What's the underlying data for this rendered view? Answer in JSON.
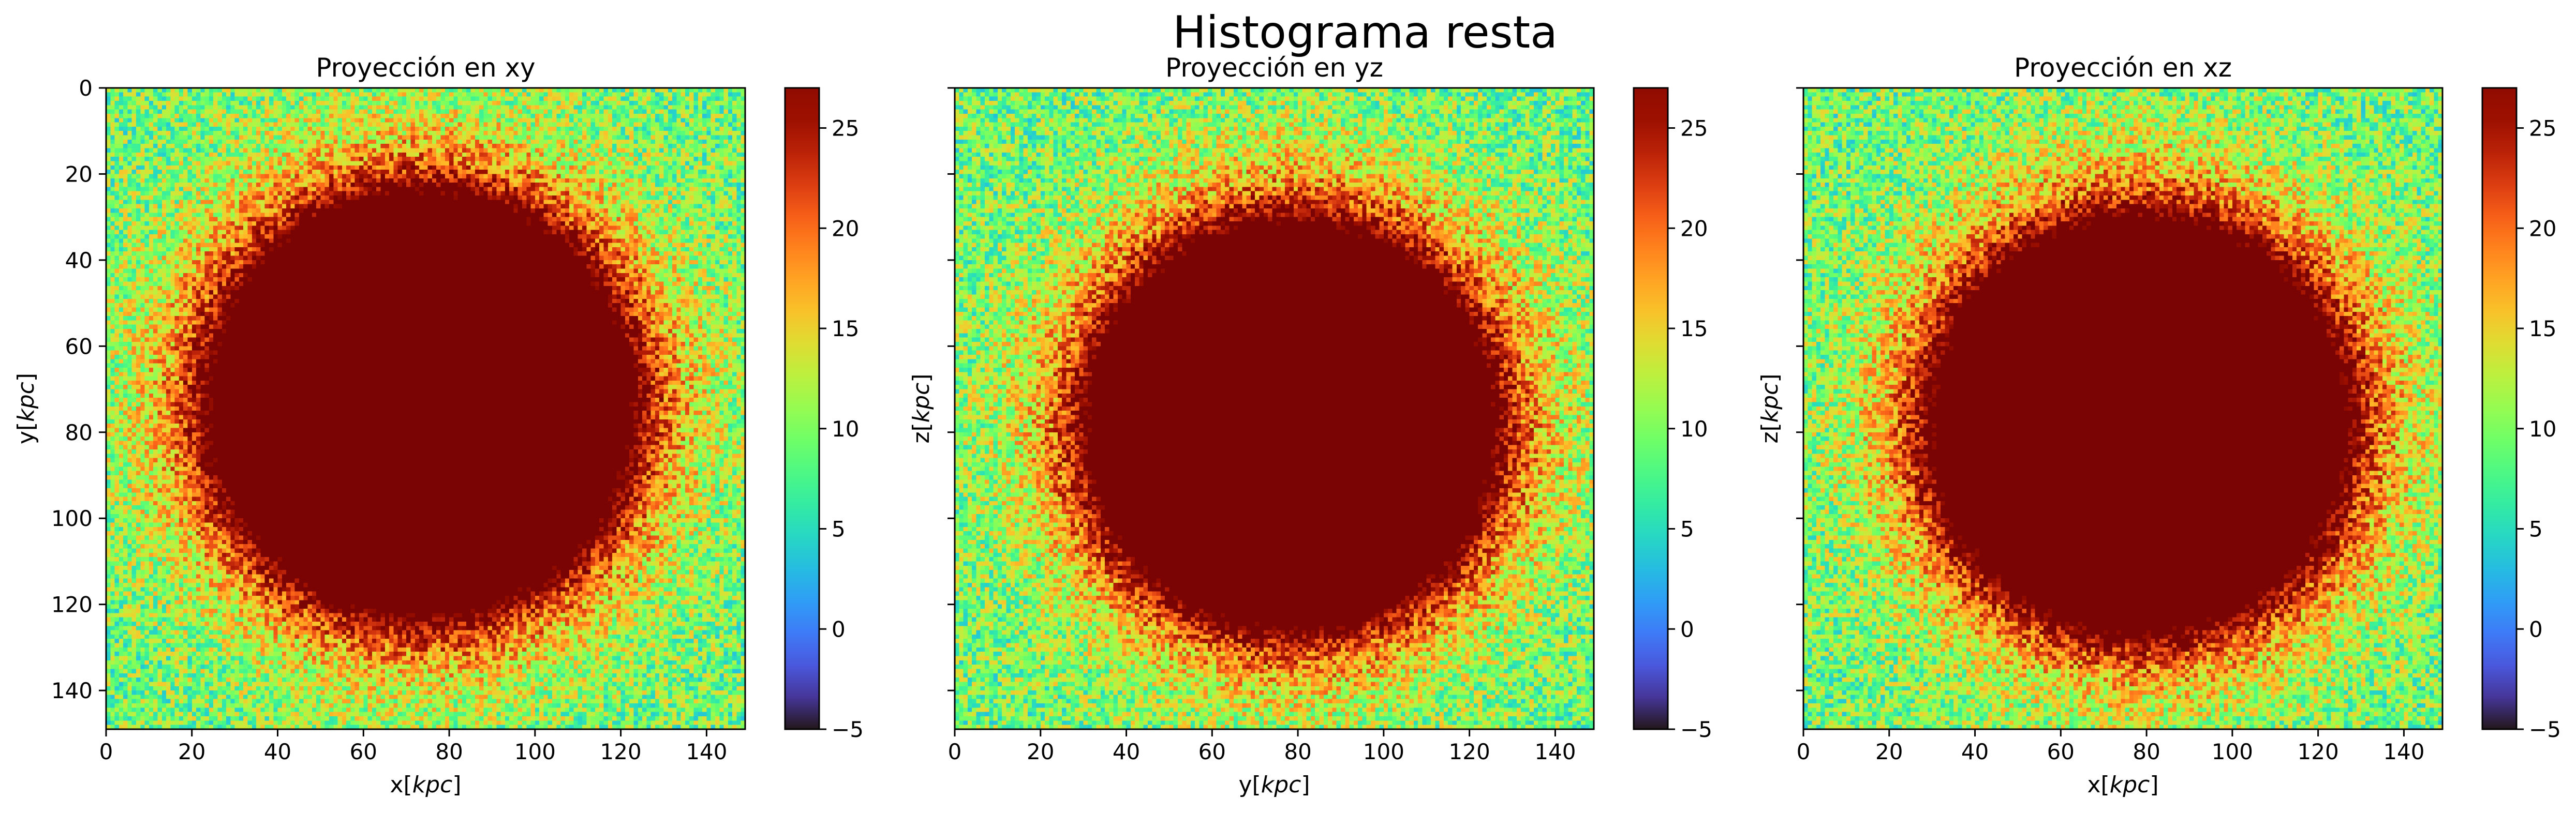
{
  "title": "Histograma resta",
  "chart_data": [
    {
      "type": "heatmap",
      "title": "Proyección en xy",
      "xlabel": "x[kpc]",
      "xlabel_plain": "x[",
      "xlabel_italic": "kpc",
      "xlabel_close": "]",
      "ylabel": "y[kpc]",
      "ylabel_plain": "y[",
      "ylabel_italic": "kpc",
      "ylabel_close": "]",
      "xlim": [
        0,
        149
      ],
      "ylim": [
        149,
        0
      ],
      "xticks": [
        0,
        20,
        40,
        60,
        80,
        100,
        120,
        140
      ],
      "yticks": [
        0,
        20,
        40,
        60,
        80,
        100,
        120,
        140
      ],
      "show_ytick_labels": true,
      "center": [
        73,
        73
      ],
      "core_radius": 46,
      "colorbar": {
        "min": -5,
        "max": 27,
        "ticks": [
          -5,
          0,
          5,
          10,
          15,
          20,
          25
        ]
      }
    },
    {
      "type": "heatmap",
      "title": "Proyección en yz",
      "xlabel": "y[kpc]",
      "xlabel_plain": "y[",
      "xlabel_italic": "kpc",
      "xlabel_close": "]",
      "ylabel": "z[kpc]",
      "ylabel_plain": "z[",
      "ylabel_italic": "kpc",
      "ylabel_close": "]",
      "xlim": [
        0,
        149
      ],
      "ylim": [
        149,
        0
      ],
      "xticks": [
        0,
        20,
        40,
        60,
        80,
        100,
        120,
        140
      ],
      "yticks": [
        0,
        20,
        40,
        60,
        80,
        100,
        120,
        140
      ],
      "show_ytick_labels": false,
      "center": [
        78,
        78
      ],
      "core_radius": 44,
      "colorbar": {
        "min": -5,
        "max": 27,
        "ticks": [
          -5,
          0,
          5,
          10,
          15,
          20,
          25
        ]
      }
    },
    {
      "type": "heatmap",
      "title": "Proyección en xz",
      "xlabel": "x[kpc]",
      "xlabel_plain": "x[",
      "xlabel_italic": "kpc",
      "xlabel_close": "]",
      "ylabel": "z[kpc]",
      "ylabel_plain": "z[",
      "ylabel_italic": "kpc",
      "ylabel_close": "]",
      "xlim": [
        0,
        149
      ],
      "ylim": [
        149,
        0
      ],
      "xticks": [
        0,
        20,
        40,
        60,
        80,
        100,
        120,
        140
      ],
      "yticks": [
        0,
        20,
        40,
        60,
        80,
        100,
        120,
        140
      ],
      "show_ytick_labels": false,
      "center": [
        78,
        78
      ],
      "core_radius": 45,
      "colorbar": {
        "min": -5,
        "max": 27,
        "ticks": [
          -5,
          0,
          5,
          10,
          15,
          20,
          25
        ]
      }
    }
  ],
  "colormap": "turbo",
  "colors": {
    "core": "#7a0403",
    "background": "#ffffff",
    "axes": "#000000"
  }
}
